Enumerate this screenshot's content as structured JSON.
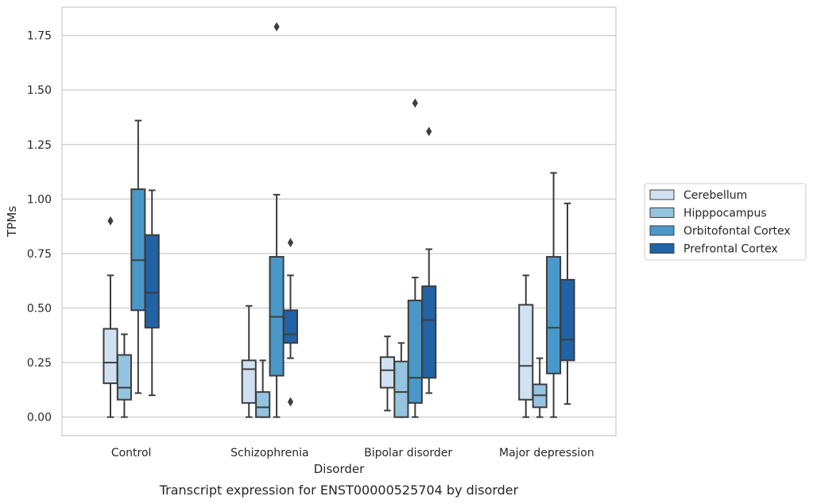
{
  "chart_data": {
    "type": "box",
    "caption": "Transcript expression for ENST00000525704 by disorder",
    "xlabel": "Disorder",
    "ylabel": "TPMs",
    "ylim": [
      -0.085,
      1.88
    ],
    "yticks": [
      "0.00",
      "0.25",
      "0.50",
      "0.75",
      "1.00",
      "1.25",
      "1.50",
      "1.75"
    ],
    "ytick_values": [
      0,
      0.25,
      0.5,
      0.75,
      1.0,
      1.25,
      1.5,
      1.75
    ],
    "grid": "horizontal",
    "legend_position": "right",
    "categories": [
      "Control",
      "Schizophrenia",
      "Bipolar disorder",
      "Major depression"
    ],
    "series": [
      {
        "name": "Cerebellum",
        "color": "#d0e1f2",
        "boxes": [
          {
            "whislo": 0.0,
            "q1": 0.155,
            "med": 0.25,
            "q3": 0.405,
            "whishi": 0.65,
            "fliers": [
              0.9
            ]
          },
          {
            "whislo": 0.0,
            "q1": 0.065,
            "med": 0.22,
            "q3": 0.26,
            "whishi": 0.51,
            "fliers": []
          },
          {
            "whislo": 0.03,
            "q1": 0.135,
            "med": 0.215,
            "q3": 0.275,
            "whishi": 0.37,
            "fliers": []
          },
          {
            "whislo": 0.0,
            "q1": 0.08,
            "med": 0.235,
            "q3": 0.515,
            "whishi": 0.65,
            "fliers": []
          }
        ]
      },
      {
        "name": "Hipppocampus",
        "color": "#94c4df",
        "boxes": [
          {
            "whislo": 0.0,
            "q1": 0.08,
            "med": 0.135,
            "q3": 0.285,
            "whishi": 0.38,
            "fliers": []
          },
          {
            "whislo": 0.0,
            "q1": 0.0,
            "med": 0.045,
            "q3": 0.115,
            "whishi": 0.26,
            "fliers": []
          },
          {
            "whislo": 0.0,
            "q1": 0.0,
            "med": 0.115,
            "q3": 0.255,
            "whishi": 0.34,
            "fliers": []
          },
          {
            "whislo": 0.0,
            "q1": 0.045,
            "med": 0.1,
            "q3": 0.15,
            "whishi": 0.27,
            "fliers": []
          }
        ]
      },
      {
        "name": "Orbitofontal Cortex",
        "color": "#4a98c9",
        "boxes": [
          {
            "whislo": 0.11,
            "q1": 0.49,
            "med": 0.72,
            "q3": 1.045,
            "whishi": 1.36,
            "fliers": []
          },
          {
            "whislo": 0.0,
            "q1": 0.19,
            "med": 0.46,
            "q3": 0.735,
            "whishi": 1.02,
            "fliers": [
              1.79
            ]
          },
          {
            "whislo": 0.0,
            "q1": 0.065,
            "med": 0.18,
            "q3": 0.535,
            "whishi": 0.64,
            "fliers": [
              1.44
            ]
          },
          {
            "whislo": 0.0,
            "q1": 0.2,
            "med": 0.41,
            "q3": 0.735,
            "whishi": 1.12,
            "fliers": []
          }
        ]
      },
      {
        "name": "Prefrontal Cortex",
        "color": "#2163a5",
        "boxes": [
          {
            "whislo": 0.1,
            "q1": 0.41,
            "med": 0.57,
            "q3": 0.835,
            "whishi": 1.04,
            "fliers": []
          },
          {
            "whislo": 0.27,
            "q1": 0.34,
            "med": 0.38,
            "q3": 0.49,
            "whishi": 0.65,
            "fliers": [
              0.8,
              0.07
            ]
          },
          {
            "whislo": 0.11,
            "q1": 0.18,
            "med": 0.445,
            "q3": 0.6,
            "whishi": 0.77,
            "fliers": [
              1.31
            ]
          },
          {
            "whislo": 0.06,
            "q1": 0.26,
            "med": 0.355,
            "q3": 0.63,
            "whishi": 0.98,
            "fliers": []
          }
        ]
      }
    ]
  }
}
